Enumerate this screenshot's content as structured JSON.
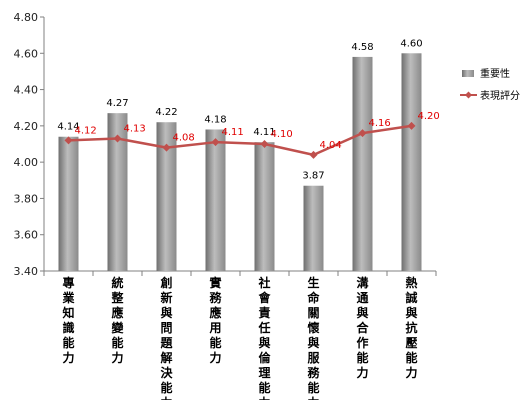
{
  "chart_data": {
    "type": "bar",
    "categories": [
      "專業知識能力",
      "統整應變能力",
      "創新與問題解決能力",
      "實務應用能力",
      "社會責任與倫理能力",
      "生命關懷與服務能力",
      "溝通與合作能力",
      "熱誠與抗壓能力"
    ],
    "series": [
      {
        "name": "重要性",
        "type": "bar",
        "values": [
          4.14,
          4.27,
          4.22,
          4.18,
          4.11,
          3.87,
          4.58,
          4.6
        ],
        "labels": [
          "4.14",
          "4.27",
          "4.22",
          "4.18",
          "4.11",
          "3.87",
          "4.58",
          "4.60"
        ]
      },
      {
        "name": "表現評分",
        "type": "line",
        "values": [
          4.12,
          4.13,
          4.08,
          4.11,
          4.1,
          4.04,
          4.16,
          4.2
        ],
        "labels": [
          "4.12",
          "4.13",
          "4.08",
          "4.11",
          "4.10",
          "4.04",
          "4.16",
          "4.20"
        ]
      }
    ],
    "ylim": [
      3.4,
      4.8
    ],
    "yticks": [
      "3.40",
      "3.60",
      "3.80",
      "4.00",
      "4.20",
      "4.40",
      "4.60",
      "4.80"
    ],
    "grid": false,
    "legend_position": "right",
    "colors": {
      "bar": "#9a9a9a",
      "line": "#c0504d",
      "line_label": "#e00000"
    }
  }
}
